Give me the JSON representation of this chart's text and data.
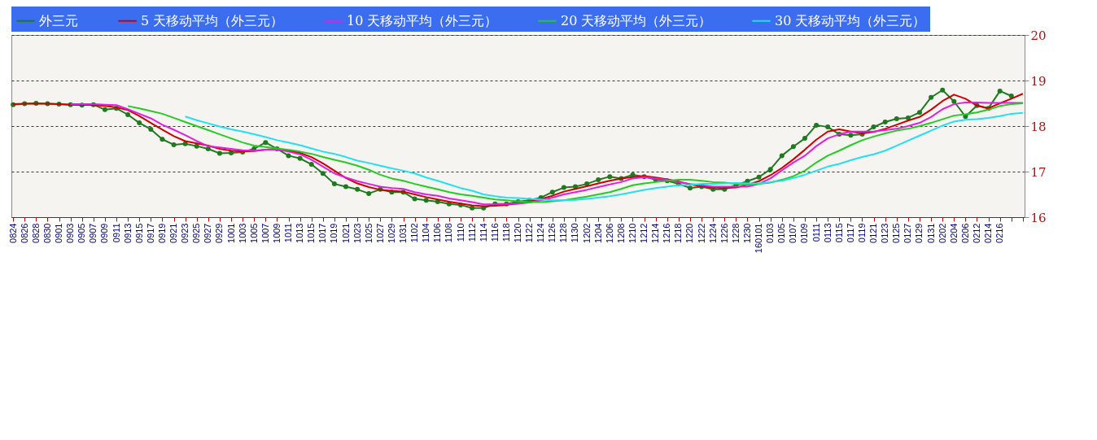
{
  "chart_data": {
    "type": "line",
    "categories": [
      "0824",
      "0826",
      "0828",
      "0830",
      "0901",
      "0903",
      "0905",
      "0907",
      "0909",
      "0911",
      "0913",
      "0915",
      "0917",
      "0919",
      "0921",
      "0923",
      "0925",
      "0927",
      "0929",
      "1001",
      "1003",
      "1005",
      "1007",
      "1009",
      "1011",
      "1013",
      "1015",
      "1017",
      "1019",
      "1021",
      "1023",
      "1025",
      "1027",
      "1029",
      "1031",
      "1102",
      "1104",
      "1106",
      "1108",
      "1110",
      "1112",
      "1114",
      "1116",
      "1118",
      "1120",
      "1122",
      "1124",
      "1126",
      "1128",
      "1130",
      "1202",
      "1204",
      "1206",
      "1208",
      "1210",
      "1212",
      "1214",
      "1216",
      "1218",
      "1220",
      "1222",
      "1224",
      "1226",
      "1228",
      "1230",
      "160101",
      "0103",
      "0105",
      "0107",
      "0109",
      "0111",
      "0113",
      "0115",
      "0117",
      "0119",
      "0121",
      "0123",
      "0125",
      "0127",
      "0129",
      "0131",
      "0202",
      "0204",
      "0206",
      "0212",
      "0214",
      "0216",
      null,
      null
    ],
    "series": [
      {
        "name": "外三元",
        "color": "#1f7a1f",
        "marker": "circle",
        "axis": "y2",
        "values": [
          18.47,
          18.49,
          18.5,
          18.49,
          18.48,
          18.47,
          18.46,
          18.47,
          18.36,
          18.39,
          18.25,
          18.07,
          17.93,
          17.71,
          17.59,
          17.61,
          17.56,
          17.5,
          17.4,
          17.41,
          17.43,
          17.5,
          17.64,
          17.5,
          17.35,
          17.29,
          17.16,
          16.96,
          16.73,
          16.67,
          16.61,
          16.52,
          16.61,
          16.55,
          16.55,
          16.4,
          16.37,
          16.34,
          16.29,
          16.27,
          16.2,
          16.2,
          16.29,
          16.29,
          16.34,
          16.37,
          16.43,
          16.55,
          16.65,
          16.67,
          16.73,
          16.82,
          16.89,
          16.85,
          16.93,
          16.89,
          16.82,
          16.8,
          16.73,
          16.64,
          16.67,
          16.61,
          16.61,
          16.7,
          16.79,
          16.88,
          17.05,
          17.35,
          17.55,
          17.73,
          18.02,
          17.98,
          17.82,
          17.8,
          17.82,
          17.98,
          18.09,
          18.16,
          18.18,
          18.3,
          18.63,
          18.79,
          18.54,
          18.21,
          18.45,
          18.39,
          18.77,
          18.66,
          null
        ]
      },
      {
        "name": "5 天移动平均（外三元）",
        "color": "#cc0000",
        "axis": "y2",
        "values": [
          18.48,
          18.49,
          18.49,
          18.49,
          18.48,
          18.47,
          18.47,
          18.46,
          18.44,
          18.41,
          18.35,
          18.22,
          18.07,
          17.92,
          17.78,
          17.67,
          17.62,
          17.57,
          17.5,
          17.46,
          17.44,
          17.45,
          17.48,
          17.5,
          17.46,
          17.41,
          17.32,
          17.18,
          17.02,
          16.86,
          16.74,
          16.66,
          16.6,
          16.58,
          16.56,
          16.5,
          16.44,
          16.39,
          16.34,
          16.3,
          16.26,
          16.24,
          16.25,
          16.27,
          16.3,
          16.34,
          16.4,
          16.47,
          16.56,
          16.62,
          16.68,
          16.74,
          16.8,
          16.85,
          16.88,
          16.9,
          16.87,
          16.83,
          16.78,
          16.72,
          16.68,
          16.65,
          16.64,
          16.65,
          16.71,
          16.79,
          16.92,
          17.08,
          17.27,
          17.48,
          17.7,
          17.88,
          17.93,
          17.88,
          17.84,
          17.87,
          17.94,
          18.03,
          18.12,
          18.2,
          18.36,
          18.55,
          18.69,
          18.6,
          18.45,
          18.39,
          18.5,
          18.6,
          18.71
        ]
      },
      {
        "name": "10 天移动平均（外三元）",
        "color": "#e020e0",
        "axis": "y2",
        "values": [
          null,
          null,
          null,
          null,
          null,
          18.48,
          18.48,
          18.48,
          18.47,
          18.46,
          18.37,
          18.27,
          18.17,
          18.03,
          17.92,
          17.8,
          17.67,
          17.56,
          17.53,
          17.5,
          17.47,
          17.46,
          17.48,
          17.48,
          17.44,
          17.38,
          17.26,
          17.11,
          16.96,
          16.87,
          16.79,
          16.73,
          16.67,
          16.64,
          16.62,
          16.55,
          16.5,
          16.47,
          16.41,
          16.37,
          16.33,
          16.28,
          16.28,
          16.29,
          16.3,
          16.32,
          16.37,
          16.43,
          16.5,
          16.55,
          16.6,
          16.66,
          16.72,
          16.77,
          16.85,
          16.88,
          16.85,
          16.82,
          16.77,
          16.73,
          16.7,
          16.67,
          16.67,
          16.67,
          16.67,
          16.73,
          16.85,
          17.03,
          17.2,
          17.35,
          17.56,
          17.73,
          17.82,
          17.88,
          17.88,
          17.88,
          17.91,
          17.94,
          18.0,
          18.07,
          18.2,
          18.37,
          18.48,
          18.52,
          18.52,
          18.51,
          18.51,
          18.51,
          18.51
        ]
      },
      {
        "name": "20 天移动平均（外三元）",
        "color": "#22cc22",
        "axis": "y2",
        "values": [
          null,
          null,
          null,
          null,
          null,
          null,
          null,
          null,
          null,
          null,
          18.44,
          18.39,
          18.33,
          18.27,
          18.18,
          18.09,
          18.0,
          17.91,
          17.82,
          17.73,
          17.64,
          17.57,
          17.54,
          17.51,
          17.48,
          17.44,
          17.39,
          17.32,
          17.26,
          17.2,
          17.13,
          17.04,
          16.93,
          16.85,
          16.8,
          16.73,
          16.67,
          16.61,
          16.55,
          16.5,
          16.47,
          16.43,
          16.39,
          16.37,
          16.35,
          16.33,
          16.33,
          16.35,
          16.37,
          16.41,
          16.45,
          16.5,
          16.55,
          16.62,
          16.7,
          16.74,
          16.77,
          16.8,
          16.82,
          16.82,
          16.8,
          16.77,
          16.76,
          16.73,
          16.71,
          16.73,
          16.76,
          16.82,
          16.9,
          17.02,
          17.2,
          17.35,
          17.46,
          17.58,
          17.69,
          17.77,
          17.84,
          17.9,
          17.94,
          18.0,
          18.07,
          18.15,
          18.23,
          18.26,
          18.3,
          18.36,
          18.44,
          18.48,
          18.5
        ]
      },
      {
        "name": "30 天移动平均（外三元）",
        "color": "#22e0f0",
        "axis": "y2",
        "values": [
          null,
          null,
          null,
          null,
          null,
          null,
          null,
          null,
          null,
          null,
          null,
          null,
          null,
          null,
          null,
          18.21,
          18.13,
          18.06,
          17.99,
          17.93,
          17.88,
          17.82,
          17.76,
          17.69,
          17.64,
          17.58,
          17.51,
          17.44,
          17.39,
          17.32,
          17.24,
          17.19,
          17.13,
          17.07,
          17.02,
          16.96,
          16.87,
          16.8,
          16.72,
          16.64,
          16.58,
          16.5,
          16.46,
          16.43,
          16.42,
          16.4,
          16.39,
          16.37,
          16.37,
          16.38,
          16.4,
          16.43,
          16.46,
          16.5,
          16.55,
          16.6,
          16.64,
          16.67,
          16.7,
          16.71,
          16.73,
          16.73,
          16.74,
          16.75,
          16.74,
          16.74,
          16.77,
          16.8,
          16.86,
          16.93,
          17.02,
          17.11,
          17.17,
          17.25,
          17.32,
          17.38,
          17.46,
          17.57,
          17.68,
          17.79,
          17.9,
          18.01,
          18.1,
          18.14,
          18.15,
          18.18,
          18.22,
          18.27,
          18.29
        ]
      }
    ],
    "y2lim": [
      16,
      20
    ],
    "y2ticks": [
      16,
      17,
      18,
      19,
      20
    ],
    "grid": "y",
    "legend": "top"
  }
}
